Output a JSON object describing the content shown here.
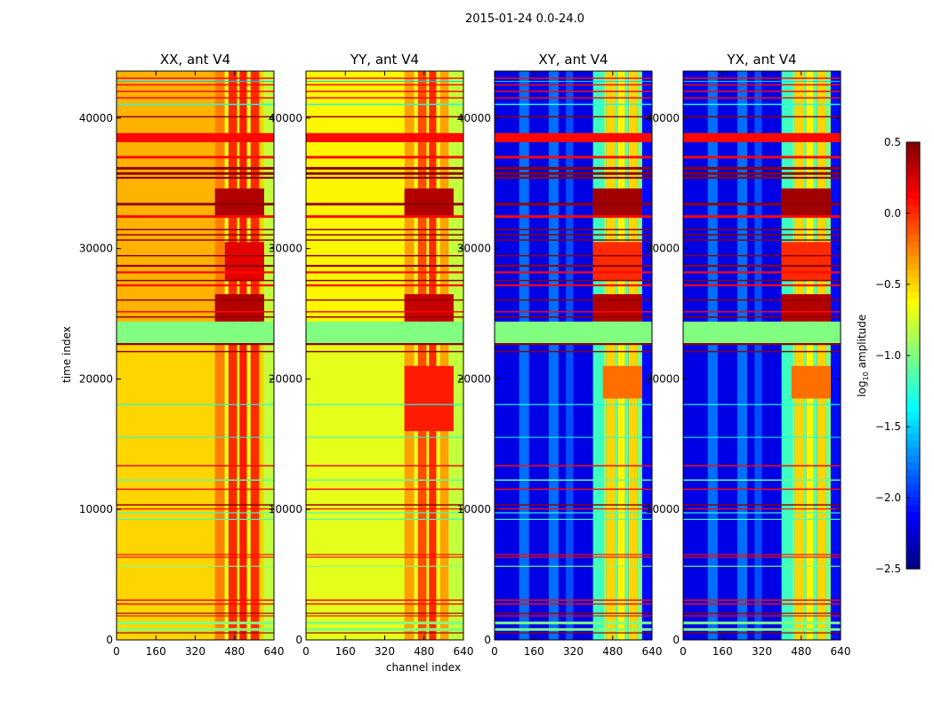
{
  "chart_data": {
    "type": "heatmap",
    "title": "2015-01-24 0.0-24.0",
    "xlabel": "channel index",
    "ylabel": "time index",
    "xlim": [
      0,
      640
    ],
    "ylim": [
      0,
      43600
    ],
    "xticks": [
      "0",
      "160",
      "320",
      "480",
      "640"
    ],
    "yticks": [
      "0",
      "10000",
      "20000",
      "30000",
      "40000"
    ],
    "colormap": "jet",
    "colorbar": {
      "label": "log10 amplitude",
      "label_main": "log",
      "label_sub": "10",
      "label_rest": " amplitude",
      "range": [
        -2.5,
        0.5
      ],
      "ticks": [
        "0.5",
        "0.0",
        "−0.5",
        "−1.0",
        "−1.5",
        "−2.0",
        "−2.5"
      ]
    },
    "rows_all_panels": [
      [
        22750,
        24400,
        -1.0
      ],
      [
        22600,
        22750,
        0.45
      ],
      [
        22050,
        22150,
        0.45
      ],
      [
        38150,
        38850,
        0.1
      ],
      [
        40050,
        40150,
        0.45
      ],
      [
        36900,
        37100,
        0.1
      ],
      [
        36050,
        36250,
        0.45
      ],
      [
        35650,
        35850,
        0.45
      ],
      [
        35350,
        35500,
        0.45
      ],
      [
        33300,
        33500,
        0.45
      ],
      [
        32350,
        32550,
        0.1
      ],
      [
        31400,
        31500,
        0.45
      ],
      [
        31000,
        31100,
        0.45
      ],
      [
        30600,
        30700,
        0.45
      ],
      [
        29400,
        29500,
        0.45
      ],
      [
        28600,
        28750,
        0.45
      ],
      [
        28100,
        28250,
        0.1
      ],
      [
        27500,
        27600,
        0.45
      ],
      [
        27100,
        27250,
        0.1
      ],
      [
        26000,
        26100,
        0.45
      ],
      [
        25100,
        25200,
        0.1
      ],
      [
        24700,
        24800,
        0.45
      ],
      [
        41500,
        41600,
        0.1
      ],
      [
        42000,
        42100,
        0.1
      ],
      [
        42500,
        42600,
        0.1
      ],
      [
        43000,
        43100,
        0.1
      ],
      [
        41000,
        41100,
        -1.3
      ],
      [
        42800,
        42850,
        -1.5
      ],
      [
        18000,
        18080,
        -1.3
      ],
      [
        15500,
        15560,
        -1.3
      ],
      [
        13300,
        13400,
        0.1
      ],
      [
        12200,
        12300,
        -1.1
      ],
      [
        11500,
        11600,
        0.1
      ],
      [
        10300,
        10400,
        0.45
      ],
      [
        10000,
        10080,
        0.1
      ],
      [
        9700,
        9780,
        -1.2
      ],
      [
        9200,
        9280,
        -1.2
      ],
      [
        6500,
        6580,
        0.1
      ],
      [
        6300,
        6380,
        0.1
      ],
      [
        5600,
        5680,
        -1.0
      ],
      [
        3000,
        3100,
        0.1
      ],
      [
        2700,
        2800,
        0.1
      ],
      [
        2000,
        2080,
        0.45
      ],
      [
        1800,
        1880,
        0.1
      ],
      [
        1200,
        1400,
        -1.0
      ],
      [
        700,
        900,
        -1.0
      ],
      [
        500,
        580,
        0.45
      ]
    ],
    "panels": [
      {
        "title": "XX, ant V4",
        "base": -0.55,
        "columns": [
          [
            0,
            400,
            -0.5
          ],
          [
            400,
            440,
            -0.25
          ],
          [
            440,
            455,
            -0.7
          ],
          [
            455,
            490,
            0.0
          ],
          [
            490,
            500,
            -0.7
          ],
          [
            500,
            530,
            0.05
          ],
          [
            530,
            545,
            -0.7
          ],
          [
            545,
            580,
            0.0
          ],
          [
            580,
            600,
            -0.5
          ],
          [
            600,
            640,
            -0.8
          ]
        ],
        "blocks": [
          [
            24400,
            43600,
            0,
            400,
            -0.4
          ],
          [
            32400,
            34600,
            400,
            600,
            0.35
          ],
          [
            24400,
            26500,
            400,
            600,
            0.35
          ],
          [
            27500,
            30500,
            440,
            600,
            0.2
          ]
        ]
      },
      {
        "title": "YY, ant V4",
        "base": -0.75,
        "columns": [
          [
            0,
            400,
            -0.7
          ],
          [
            400,
            440,
            -0.35
          ],
          [
            440,
            455,
            -0.7
          ],
          [
            455,
            490,
            -0.1
          ],
          [
            490,
            500,
            -0.7
          ],
          [
            500,
            530,
            0.0
          ],
          [
            530,
            545,
            -0.7
          ],
          [
            545,
            580,
            -0.35
          ],
          [
            580,
            640,
            -0.8
          ]
        ],
        "blocks": [
          [
            24400,
            43600,
            0,
            400,
            -0.6
          ],
          [
            32400,
            34600,
            400,
            600,
            0.35
          ],
          [
            24400,
            26500,
            400,
            600,
            0.3
          ],
          [
            16000,
            21000,
            400,
            600,
            0.05
          ]
        ]
      },
      {
        "title": "XY, ant V4",
        "base": -2.2,
        "columns": [
          [
            100,
            140,
            -1.8
          ],
          [
            220,
            260,
            -1.8
          ],
          [
            290,
            320,
            -1.9
          ],
          [
            400,
            445,
            -1.2
          ],
          [
            445,
            455,
            -0.9
          ],
          [
            455,
            490,
            -0.5
          ],
          [
            490,
            500,
            -1.1
          ],
          [
            500,
            530,
            -0.6
          ],
          [
            530,
            545,
            -1.1
          ],
          [
            545,
            580,
            -0.5
          ],
          [
            580,
            600,
            -1.0
          ],
          [
            600,
            640,
            -2.1
          ]
        ],
        "blocks": [
          [
            32400,
            34600,
            400,
            600,
            0.4
          ],
          [
            24400,
            26500,
            400,
            600,
            0.35
          ],
          [
            27500,
            30500,
            400,
            600,
            0.0
          ],
          [
            18500,
            21000,
            440,
            600,
            -0.2
          ]
        ]
      },
      {
        "title": "YX, ant V4",
        "base": -2.2,
        "columns": [
          [
            100,
            140,
            -1.8
          ],
          [
            220,
            260,
            -1.8
          ],
          [
            290,
            320,
            -1.9
          ],
          [
            400,
            445,
            -1.2
          ],
          [
            445,
            455,
            -0.9
          ],
          [
            455,
            490,
            -0.5
          ],
          [
            490,
            500,
            -1.1
          ],
          [
            500,
            530,
            -0.6
          ],
          [
            530,
            545,
            -1.1
          ],
          [
            545,
            580,
            -0.5
          ],
          [
            580,
            600,
            -1.0
          ],
          [
            600,
            640,
            -2.1
          ]
        ],
        "blocks": [
          [
            32400,
            34600,
            400,
            600,
            0.4
          ],
          [
            24400,
            26500,
            400,
            600,
            0.35
          ],
          [
            27500,
            30500,
            400,
            600,
            0.0
          ],
          [
            18500,
            21000,
            440,
            600,
            -0.2
          ]
        ]
      }
    ]
  }
}
